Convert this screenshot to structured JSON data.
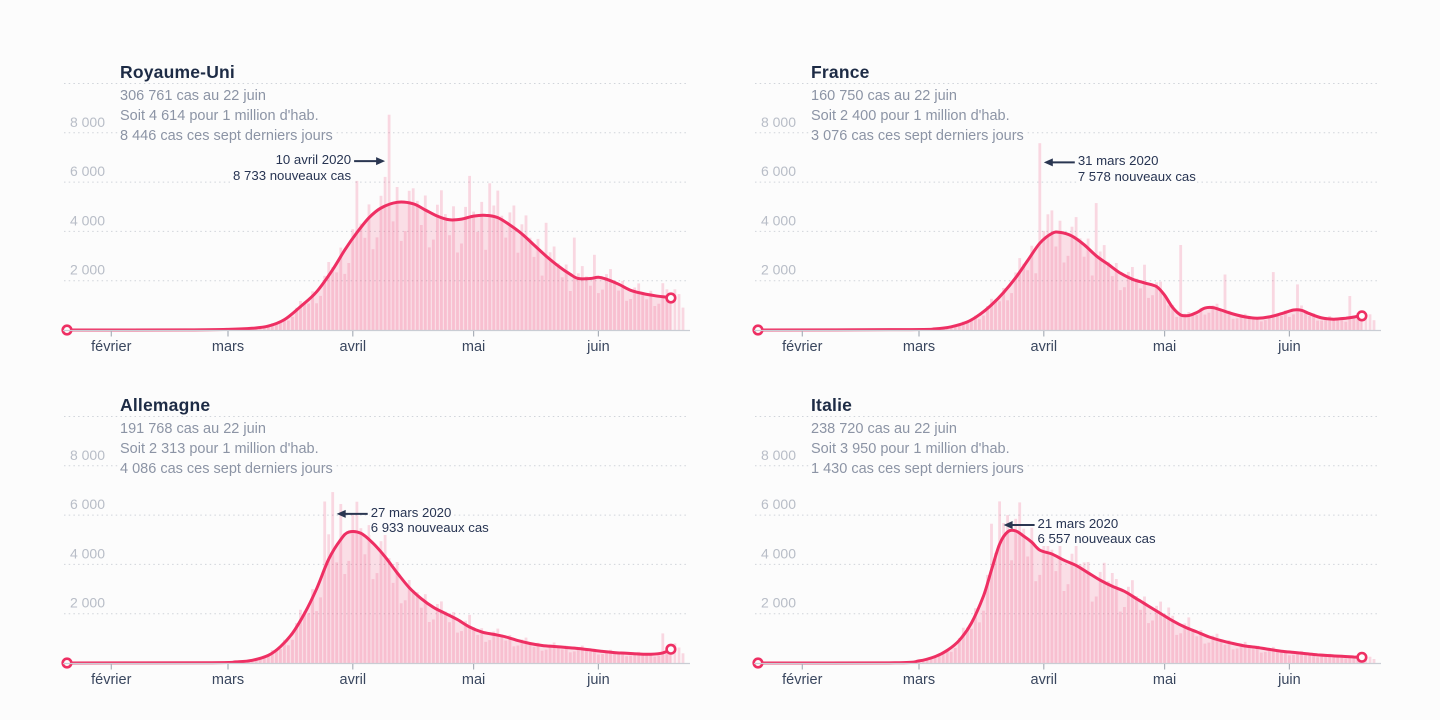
{
  "page": {
    "background": "#fcfcfc",
    "as_of_label": "22 juin"
  },
  "colors": {
    "line": "#ee2f63",
    "bar_rgb": "240,70,120",
    "bar_alpha": 0.2,
    "area_alpha": 0.16,
    "title_text": "#1d2b45",
    "stats_text": "#8c94a5",
    "y_label_text": "#b8bdc7",
    "month_label_text": "#39465e",
    "gridline": "#d0d4da",
    "axis_line": "#c9cdd4",
    "tick": "#aab0b9",
    "annotation_text": "#273452",
    "arrow": "#2a3651"
  },
  "axis": {
    "y_ticks": [
      {
        "value": 2000,
        "label": "2 000"
      },
      {
        "value": 4000,
        "label": "4 000"
      },
      {
        "value": 6000,
        "label": "6 000"
      },
      {
        "value": 8000,
        "label": "8 000"
      }
    ],
    "y_grid_values": [
      2000,
      4000,
      6000,
      8000,
      10000
    ],
    "ylim": [
      0,
      10000
    ],
    "grid": "dotted",
    "months": [
      {
        "label": "février",
        "day": 11
      },
      {
        "label": "mars",
        "day": 40
      },
      {
        "label": "avril",
        "day": 71
      },
      {
        "label": "mai",
        "day": 101
      },
      {
        "label": "juin",
        "day": 132
      }
    ],
    "days_total": 154,
    "line_end_day": 150
  },
  "bar_weekly_pattern": [
    0.78,
    1.1,
    1.24,
    1.04,
    0.86,
    1.12,
    0.7
  ],
  "chart_data": [
    {
      "type": "bar",
      "overlay": "line",
      "country": "Royaume-Uni",
      "stats": [
        "306 761 cas au 22 juin",
        "Soit 4 614 pour 1 million d'hab.",
        "8 446 cas ces sept derniers jours"
      ],
      "annotation": {
        "date": "10 avril 2020",
        "label": "8 733 nouveaux cas",
        "peak_day": 80,
        "peak_value": 8733,
        "anchor_value": 6850,
        "text_side": "left"
      },
      "line_points": [
        [
          0,
          0
        ],
        [
          30,
          5
        ],
        [
          40,
          25
        ],
        [
          46,
          70
        ],
        [
          50,
          160
        ],
        [
          54,
          420
        ],
        [
          58,
          950
        ],
        [
          62,
          1550
        ],
        [
          66,
          2450
        ],
        [
          69,
          3250
        ],
        [
          72,
          3950
        ],
        [
          75,
          4550
        ],
        [
          78,
          4950
        ],
        [
          82,
          5180
        ],
        [
          86,
          5120
        ],
        [
          89,
          4870
        ],
        [
          92,
          4620
        ],
        [
          95,
          4470
        ],
        [
          98,
          4500
        ],
        [
          101,
          4620
        ],
        [
          104,
          4650
        ],
        [
          107,
          4560
        ],
        [
          110,
          4260
        ],
        [
          113,
          3900
        ],
        [
          116,
          3450
        ],
        [
          119,
          3000
        ],
        [
          122,
          2600
        ],
        [
          125,
          2260
        ],
        [
          127,
          2090
        ],
        [
          130,
          2090
        ],
        [
          132,
          2140
        ],
        [
          134,
          2060
        ],
        [
          137,
          1860
        ],
        [
          140,
          1610
        ],
        [
          143,
          1480
        ],
        [
          146,
          1390
        ],
        [
          149,
          1330
        ],
        [
          150,
          1300
        ]
      ],
      "bar_spikes": [
        [
          72,
          6050
        ],
        [
          80,
          8733
        ],
        [
          86,
          5750
        ],
        [
          100,
          6250
        ],
        [
          105,
          5950
        ],
        [
          111,
          5050
        ],
        [
          119,
          4350
        ],
        [
          126,
          3750
        ],
        [
          131,
          3050
        ],
        [
          148,
          1900
        ],
        [
          151,
          1650
        ]
      ]
    },
    {
      "type": "bar",
      "overlay": "line",
      "country": "France",
      "stats": [
        "160 750 cas au 22 juin",
        "Soit 2 400 pour 1 million d'hab.",
        "3 076 cas ces sept derniers jours"
      ],
      "annotation": {
        "date": "31 mars 2020",
        "label": "7 578 nouveaux cas",
        "peak_day": 70,
        "peak_value": 7578,
        "anchor_value": 6800,
        "text_side": "right"
      },
      "line_points": [
        [
          0,
          0
        ],
        [
          38,
          15
        ],
        [
          44,
          45
        ],
        [
          48,
          130
        ],
        [
          52,
          330
        ],
        [
          55,
          620
        ],
        [
          58,
          1020
        ],
        [
          61,
          1520
        ],
        [
          64,
          2120
        ],
        [
          67,
          2820
        ],
        [
          70,
          3520
        ],
        [
          73,
          3920
        ],
        [
          75,
          3960
        ],
        [
          78,
          3810
        ],
        [
          81,
          3460
        ],
        [
          84,
          3010
        ],
        [
          87,
          2660
        ],
        [
          90,
          2310
        ],
        [
          93,
          2060
        ],
        [
          96,
          1910
        ],
        [
          99,
          1760
        ],
        [
          101,
          1410
        ],
        [
          103,
          910
        ],
        [
          105,
          610
        ],
        [
          107,
          590
        ],
        [
          109,
          710
        ],
        [
          111,
          890
        ],
        [
          113,
          910
        ],
        [
          115,
          810
        ],
        [
          118,
          650
        ],
        [
          121,
          530
        ],
        [
          124,
          480
        ],
        [
          127,
          530
        ],
        [
          130,
          660
        ],
        [
          133,
          810
        ],
        [
          135,
          800
        ],
        [
          137,
          660
        ],
        [
          140,
          490
        ],
        [
          143,
          440
        ],
        [
          146,
          480
        ],
        [
          149,
          550
        ],
        [
          150,
          570
        ]
      ],
      "bar_spikes": [
        [
          70,
          7578
        ],
        [
          73,
          4850
        ],
        [
          84,
          5150
        ],
        [
          96,
          2650
        ],
        [
          105,
          3450
        ],
        [
          116,
          2250
        ],
        [
          128,
          2350
        ],
        [
          134,
          1850
        ],
        [
          147,
          1380
        ]
      ]
    },
    {
      "type": "bar",
      "overlay": "line",
      "country": "Allemagne",
      "stats": [
        "191 768 cas au 22 juin",
        "Soit 2 313 pour 1 million d'hab.",
        "4 086 cas ces sept derniers jours"
      ],
      "annotation": {
        "date": "27 mars 2020",
        "label": "6 933 nouveaux cas",
        "peak_day": 66,
        "peak_value": 6933,
        "anchor_value": 6050,
        "text_side": "right"
      },
      "line_points": [
        [
          0,
          0
        ],
        [
          36,
          12
        ],
        [
          42,
          45
        ],
        [
          46,
          110
        ],
        [
          50,
          310
        ],
        [
          53,
          660
        ],
        [
          56,
          1210
        ],
        [
          59,
          2010
        ],
        [
          62,
          3010
        ],
        [
          65,
          4210
        ],
        [
          68,
          5010
        ],
        [
          70,
          5310
        ],
        [
          73,
          5260
        ],
        [
          76,
          4860
        ],
        [
          79,
          4310
        ],
        [
          82,
          3660
        ],
        [
          85,
          3060
        ],
        [
          88,
          2610
        ],
        [
          91,
          2260
        ],
        [
          94,
          2010
        ],
        [
          97,
          1760
        ],
        [
          100,
          1460
        ],
        [
          103,
          1260
        ],
        [
          106,
          1160
        ],
        [
          109,
          1060
        ],
        [
          112,
          910
        ],
        [
          115,
          790
        ],
        [
          118,
          710
        ],
        [
          121,
          670
        ],
        [
          124,
          630
        ],
        [
          127,
          590
        ],
        [
          130,
          530
        ],
        [
          133,
          470
        ],
        [
          136,
          420
        ],
        [
          139,
          395
        ],
        [
          142,
          365
        ],
        [
          145,
          355
        ],
        [
          148,
          410
        ],
        [
          150,
          560
        ]
      ],
      "bar_spikes": [
        [
          64,
          6550
        ],
        [
          66,
          6933
        ],
        [
          68,
          6450
        ],
        [
          71,
          6050
        ],
        [
          81,
          3250
        ],
        [
          86,
          2950
        ],
        [
          93,
          2500
        ],
        [
          100,
          1950
        ],
        [
          148,
          1200
        ],
        [
          151,
          800
        ]
      ]
    },
    {
      "type": "bar",
      "overlay": "line",
      "country": "Italie",
      "stats": [
        "238 720 cas au 22 juin",
        "Soit 3 950 pour 1 million d'hab.",
        "1 430 cas ces sept derniers jours"
      ],
      "annotation": {
        "date": "21 mars 2020",
        "label": "6 557 nouveaux cas",
        "peak_day": 60,
        "peak_value": 6557,
        "anchor_value": 5600,
        "text_side": "right"
      },
      "line_points": [
        [
          0,
          0
        ],
        [
          34,
          10
        ],
        [
          40,
          85
        ],
        [
          44,
          260
        ],
        [
          47,
          510
        ],
        [
          50,
          920
        ],
        [
          53,
          1620
        ],
        [
          56,
          2720
        ],
        [
          58,
          3780
        ],
        [
          60,
          4820
        ],
        [
          62,
          5320
        ],
        [
          64,
          5360
        ],
        [
          66,
          5150
        ],
        [
          68,
          4900
        ],
        [
          70,
          4580
        ],
        [
          73,
          4420
        ],
        [
          76,
          4170
        ],
        [
          79,
          3960
        ],
        [
          82,
          3660
        ],
        [
          85,
          3360
        ],
        [
          88,
          3110
        ],
        [
          91,
          2910
        ],
        [
          94,
          2610
        ],
        [
          97,
          2310
        ],
        [
          100,
          2010
        ],
        [
          103,
          1710
        ],
        [
          106,
          1460
        ],
        [
          109,
          1260
        ],
        [
          112,
          1060
        ],
        [
          115,
          910
        ],
        [
          118,
          790
        ],
        [
          121,
          690
        ],
        [
          124,
          630
        ],
        [
          127,
          550
        ],
        [
          130,
          480
        ],
        [
          133,
          430
        ],
        [
          136,
          380
        ],
        [
          139,
          330
        ],
        [
          142,
          300
        ],
        [
          145,
          270
        ],
        [
          148,
          245
        ],
        [
          150,
          230
        ]
      ],
      "bar_spikes": [
        [
          58,
          5650
        ],
        [
          60,
          6557
        ],
        [
          62,
          6000
        ],
        [
          64,
          5850
        ],
        [
          66,
          5450
        ],
        [
          81,
          4080
        ],
        [
          88,
          3650
        ],
        [
          102,
          2250
        ],
        [
          107,
          1850
        ]
      ]
    }
  ]
}
